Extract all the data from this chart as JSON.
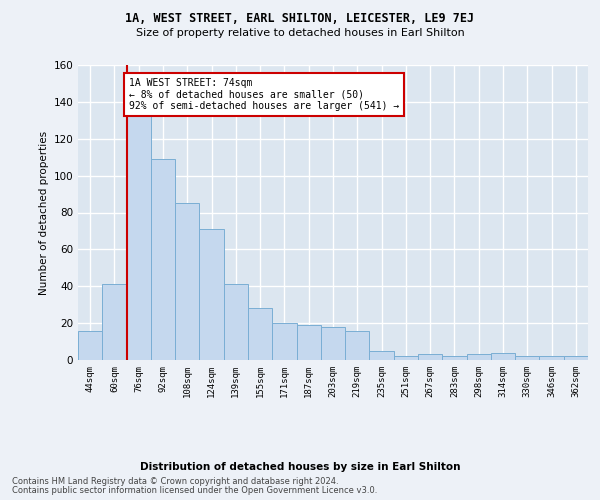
{
  "title": "1A, WEST STREET, EARL SHILTON, LEICESTER, LE9 7EJ",
  "subtitle": "Size of property relative to detached houses in Earl Shilton",
  "xlabel": "Distribution of detached houses by size in Earl Shilton",
  "ylabel": "Number of detached properties",
  "categories": [
    "44sqm",
    "60sqm",
    "76sqm",
    "92sqm",
    "108sqm",
    "124sqm",
    "139sqm",
    "155sqm",
    "171sqm",
    "187sqm",
    "203sqm",
    "219sqm",
    "235sqm",
    "251sqm",
    "267sqm",
    "283sqm",
    "298sqm",
    "314sqm",
    "330sqm",
    "346sqm",
    "362sqm"
  ],
  "values": [
    16,
    41,
    133,
    109,
    85,
    71,
    41,
    28,
    20,
    19,
    18,
    16,
    5,
    2,
    3,
    2,
    3,
    4,
    2,
    2,
    2
  ],
  "bar_color": "#c5d8ee",
  "bar_edge_color": "#7aaed4",
  "highlight_color": "#cc0000",
  "annotation_line1": "1A WEST STREET: 74sqm",
  "annotation_line2": "← 8% of detached houses are smaller (50)",
  "annotation_line3": "92% of semi-detached houses are larger (541) →",
  "annotation_box_color": "#ffffff",
  "annotation_box_edge": "#cc0000",
  "ylim": [
    0,
    160
  ],
  "yticks": [
    0,
    20,
    40,
    60,
    80,
    100,
    120,
    140,
    160
  ],
  "fig_bg_color": "#edf1f7",
  "plot_bg_color": "#dce6f0",
  "grid_color": "#ffffff",
  "footer1": "Contains HM Land Registry data © Crown copyright and database right 2024.",
  "footer2": "Contains public sector information licensed under the Open Government Licence v3.0."
}
